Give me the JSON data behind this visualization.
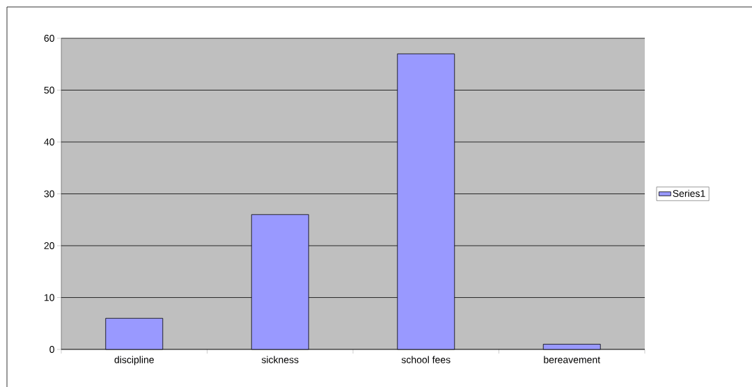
{
  "chart_data": {
    "type": "bar",
    "categories": [
      "discipline",
      "sickness",
      "school fees",
      "bereavement"
    ],
    "series": [
      {
        "name": "Series1",
        "color": "#9999ff",
        "values": [
          6,
          26,
          57,
          1
        ]
      }
    ],
    "ylim": [
      0,
      60
    ],
    "yticks": [
      0,
      10,
      20,
      30,
      40,
      50,
      60
    ],
    "grid": "y",
    "legend": "right"
  }
}
